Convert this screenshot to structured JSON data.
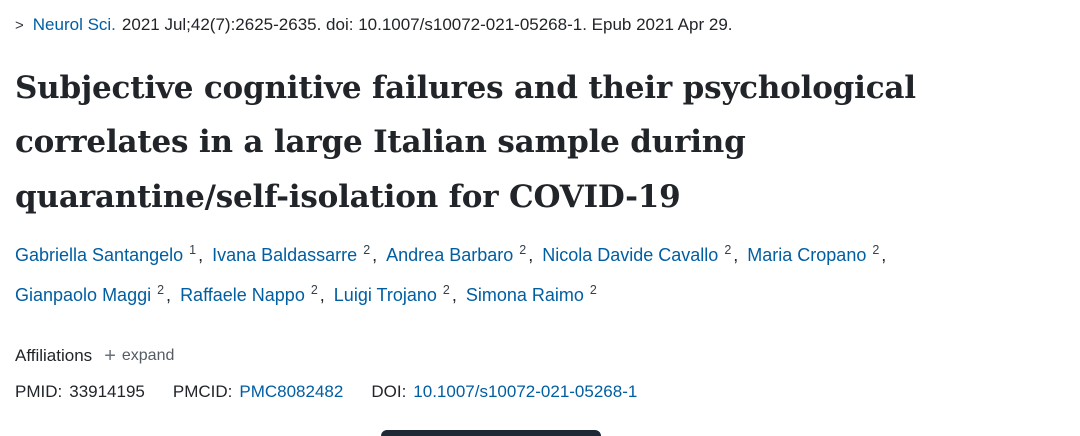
{
  "citation": {
    "chevron": ">",
    "journal": "Neurol Sci.",
    "details": "2021 Jul;42(7):2625-2635. doi: 10.1007/s10072-021-05268-1. Epub 2021 Apr 29."
  },
  "title": "Subjective cognitive failures and their psychological correlates in a large Italian sample during quarantine/self-isolation for COVID-19",
  "title_lines": [
    "Subjective cognitive failures and their psychological",
    "correlates in a large Italian sample during",
    "quarantine/self-isolation for COVID-19"
  ],
  "authors_separator": ",",
  "authors": [
    {
      "name": "Gabriella Santangelo",
      "sup": "1"
    },
    {
      "name": "Ivana Baldassarre",
      "sup": "2"
    },
    {
      "name": "Andrea Barbaro",
      "sup": "2"
    },
    {
      "name": "Nicola Davide Cavallo",
      "sup": "2"
    },
    {
      "name": "Maria Cropano",
      "sup": "2"
    },
    {
      "name": "Gianpaolo Maggi",
      "sup": "2"
    },
    {
      "name": "Raffaele Nappo",
      "sup": "2"
    },
    {
      "name": "Luigi Trojano",
      "sup": "2"
    },
    {
      "name": "Simona Raimo",
      "sup": "2"
    }
  ],
  "affiliations": {
    "label": "Affiliations",
    "expand_icon": "+",
    "expand_label": "expand"
  },
  "identifiers": {
    "pmid_label": "PMID:",
    "pmid_value": "33914195",
    "pmcid_label": "PMCID:",
    "pmcid_value": "PMC8082482",
    "doi_label": "DOI:",
    "doi_value": "10.1007/s10072-021-05268-1"
  },
  "colors": {
    "link": "#005ea2",
    "text": "#212529",
    "muted": "#555c63",
    "partial_button": "#1e2935"
  }
}
